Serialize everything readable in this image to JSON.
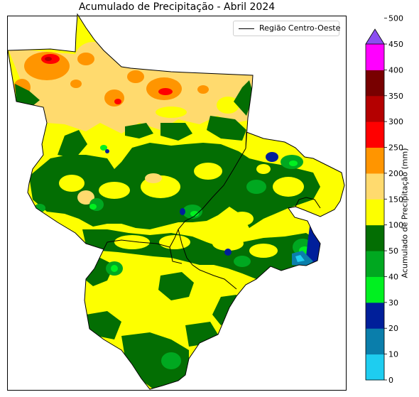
{
  "title": "Acumulado de Precipitação - Abril 2024",
  "legend": {
    "label": "Região Centro-Oeste",
    "line_color": "#000000"
  },
  "colorbar": {
    "label": "Acumulado de Precipitação (mm)",
    "ticks": [
      "0",
      "10",
      "20",
      "30",
      "40",
      "50",
      "100",
      "150",
      "200",
      "250",
      "300",
      "350",
      "400",
      "450",
      "500"
    ],
    "colors": [
      "#1ecdf0",
      "#0a7eab",
      "#001f9a",
      "#00f020",
      "#00a820",
      "#036e03",
      "#fdff00",
      "#ffda6e",
      "#ff9500",
      "#ff0000",
      "#b40000",
      "#780000",
      "#ff00ff",
      "#8b4ef0"
    ],
    "extend": "max"
  }
}
